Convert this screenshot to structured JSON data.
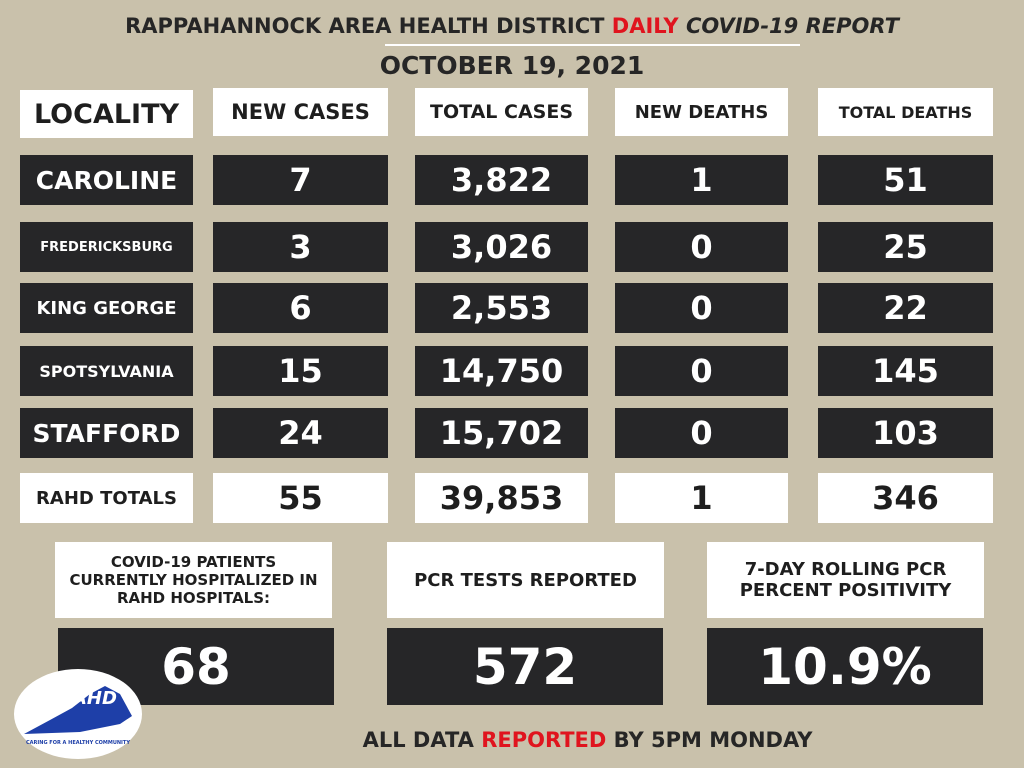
{
  "header": {
    "title_part1": "RAPPAHANNOCK AREA HEALTH DISTRICT",
    "title_highlight": "DAILY",
    "title_part2": "COVID-19 REPORT",
    "date": "OCTOBER 19, 2021"
  },
  "table": {
    "columns": [
      "LOCALITY",
      "NEW CASES",
      "TOTAL CASES",
      "NEW DEATHS",
      "TOTAL DEATHS"
    ],
    "rows": [
      [
        "CAROLINE",
        "7",
        "3,822",
        "1",
        "51"
      ],
      [
        "FREDERICKSBURG",
        "3",
        "3,026",
        "0",
        "25"
      ],
      [
        "KING GEORGE",
        "6",
        "2,553",
        "0",
        "22"
      ],
      [
        "SPOTSYLVANIA",
        "15",
        "14,750",
        "0",
        "145"
      ],
      [
        "STAFFORD",
        "24",
        "15,702",
        "0",
        "103"
      ]
    ],
    "totals": [
      "RAHD TOTALS",
      "55",
      "39,853",
      "1",
      "346"
    ]
  },
  "stats": [
    {
      "label": "COVID-19 PATIENTS CURRENTLY HOSPITALIZED IN RAHD HOSPITALS:",
      "value": "68"
    },
    {
      "label": "PCR TESTS REPORTED",
      "value": "572"
    },
    {
      "label": "7-DAY ROLLING PCR PERCENT POSITIVITY",
      "value": "10.9%"
    }
  ],
  "footer": {
    "part1": "ALL DATA",
    "highlight": "REPORTED",
    "part2": "BY 5PM MONDAY"
  },
  "logo": {
    "name": "RAHD",
    "tagline": "CARING FOR A HEALTHY COMMUNITY"
  }
}
